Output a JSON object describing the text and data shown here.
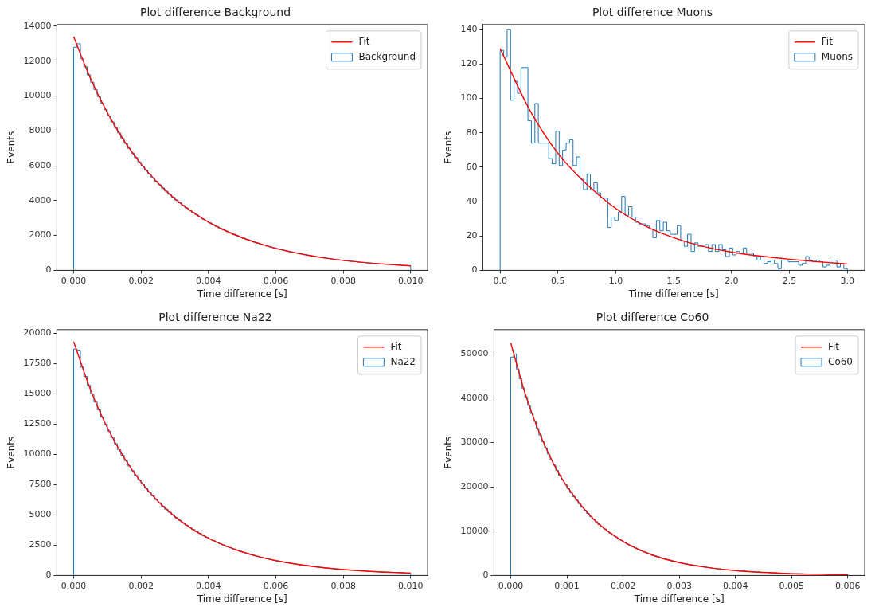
{
  "chart_data": [
    {
      "type": "histogram",
      "title": "Plot difference Background",
      "xlabel": "Time difference [s]",
      "ylabel": "Events",
      "legend": "top right",
      "bins": [
        0,
        0.0001,
        0.0002,
        0.0003,
        0.0004,
        0.0005,
        0.0006,
        0.0007,
        0.0008,
        0.0009,
        0.001,
        0.0011,
        0.0012,
        0.0013,
        0.0014,
        0.0015,
        0.0016,
        0.0017,
        0.0018,
        0.0019,
        0.002,
        0.0021,
        0.0022,
        0.0023,
        0.0024,
        0.0025,
        0.0026,
        0.0027,
        0.0028,
        0.0029,
        0.003,
        0.0031,
        0.0032,
        0.0033,
        0.0034,
        0.0035,
        0.0036,
        0.0037,
        0.0038,
        0.0039,
        0.004,
        0.0041,
        0.0042,
        0.0043,
        0.0044,
        0.0045,
        0.0046,
        0.0047,
        0.0048,
        0.0049,
        0.005,
        0.0051,
        0.0052,
        0.0053,
        0.0054,
        0.0055,
        0.0056,
        0.0057,
        0.0058,
        0.0059,
        0.006,
        0.0061,
        0.0062,
        0.0063,
        0.0064,
        0.0065,
        0.0066,
        0.0067,
        0.0068,
        0.0069,
        0.007,
        0.0071,
        0.0072,
        0.0073,
        0.0074,
        0.0075,
        0.0076,
        0.0077,
        0.0078,
        0.0079,
        0.008,
        0.0081,
        0.0082,
        0.0083,
        0.0084,
        0.0085,
        0.0086,
        0.0087,
        0.0088,
        0.0089,
        0.009,
        0.0091,
        0.0092,
        0.0093,
        0.0094,
        0.0095,
        0.0096,
        0.0097,
        0.0098,
        0.0099,
        0.01
      ],
      "series": [
        {
          "name": "Fit",
          "type": "line",
          "color": "#ff0000",
          "x": [
            0,
            0.0005,
            0.001,
            0.0015,
            0.002,
            0.0025,
            0.003,
            0.0035,
            0.004,
            0.0045,
            0.005,
            0.0055,
            0.006,
            0.0065,
            0.007,
            0.0075,
            0.008,
            0.0085,
            0.009,
            0.0095,
            0.01
          ],
          "values": [
            13400,
            11000,
            9040,
            7420,
            6100,
            5010,
            4110,
            3380,
            2770,
            2280,
            1870,
            1540,
            1260,
            1040,
            850,
            700,
            570,
            470,
            390,
            320,
            260
          ]
        },
        {
          "name": "Background",
          "color": "#1f77b4",
          "values": [
            12800,
            13000,
            12140,
            11680,
            11220,
            10790,
            10370,
            9970,
            9590,
            9220,
            8860,
            8520,
            8190,
            7880,
            7570,
            7280,
            7000,
            6730,
            6470,
            6220,
            5980,
            5750,
            5530,
            5310,
            5110,
            4910,
            4720,
            4540,
            4360,
            4200,
            4030,
            3880,
            3730,
            3580,
            3450,
            3310,
            3190,
            3060,
            2940,
            2830,
            2720,
            2620,
            2520,
            2420,
            2330,
            2240,
            2150,
            2070,
            1990,
            1910,
            1840,
            1770,
            1700,
            1630,
            1570,
            1510,
            1450,
            1390,
            1340,
            1290,
            1240,
            1190,
            1150,
            1100,
            1060,
            1020,
            980,
            940,
            900,
            870,
            840,
            800,
            770,
            740,
            710,
            690,
            660,
            630,
            610,
            590,
            560,
            540,
            520,
            500,
            480,
            460,
            450,
            430,
            410,
            400,
            380,
            370,
            350,
            340,
            330,
            310,
            300,
            290,
            280,
            270
          ]
        }
      ],
      "xlim": [
        -0.0005,
        0.0105
      ],
      "xticks": [
        {
          "value": 0,
          "label": "0.000"
        },
        {
          "value": 0.002,
          "label": "0.002"
        },
        {
          "value": 0.004,
          "label": "0.004"
        },
        {
          "value": 0.006,
          "label": "0.006"
        },
        {
          "value": 0.008,
          "label": "0.008"
        },
        {
          "value": 0.01,
          "label": "0.010"
        }
      ],
      "ylim": [
        0,
        14100
      ],
      "yticks": [
        0,
        2000,
        4000,
        6000,
        8000,
        10000,
        12000,
        14000
      ]
    },
    {
      "type": "histogram",
      "title": "Plot difference Muons",
      "xlabel": "Time difference [s]",
      "ylabel": "Events",
      "legend": "top right",
      "bins": [
        0,
        0.03,
        0.06,
        0.09,
        0.12,
        0.15,
        0.18,
        0.21,
        0.24,
        0.27,
        0.3,
        0.33,
        0.36,
        0.39,
        0.42,
        0.45,
        0.48,
        0.51,
        0.54,
        0.57,
        0.6,
        0.63,
        0.66,
        0.69,
        0.72,
        0.75,
        0.78,
        0.81,
        0.84,
        0.87,
        0.9,
        0.93,
        0.96,
        0.99,
        1.02,
        1.05,
        1.08,
        1.11,
        1.14,
        1.17,
        1.2,
        1.23,
        1.26,
        1.29,
        1.32,
        1.35,
        1.38,
        1.41,
        1.44,
        1.47,
        1.5,
        1.53,
        1.56,
        1.59,
        1.62,
        1.65,
        1.68,
        1.71,
        1.74,
        1.77,
        1.8,
        1.83,
        1.86,
        1.89,
        1.92,
        1.95,
        1.98,
        2.01,
        2.04,
        2.07,
        2.1,
        2.13,
        2.16,
        2.19,
        2.22,
        2.25,
        2.28,
        2.31,
        2.34,
        2.37,
        2.4,
        2.43,
        2.46,
        2.49,
        2.52,
        2.55,
        2.58,
        2.61,
        2.64,
        2.67,
        2.7,
        2.73,
        2.76,
        2.79,
        2.82,
        2.85,
        2.88,
        2.91,
        2.94,
        2.97,
        3
      ],
      "series": [
        {
          "name": "Fit",
          "type": "line",
          "color": "#ff0000",
          "x": [
            0,
            0.25,
            0.5,
            0.75,
            1,
            1.25,
            1.5,
            1.75,
            2,
            2.25,
            2.5,
            2.75,
            3
          ],
          "values": [
            129,
            94,
            68,
            50,
            36,
            26,
            19,
            14,
            10.6,
            8.3,
            6.5,
            5,
            3.7
          ]
        },
        {
          "name": "Muons",
          "color": "#1f77b4",
          "values": [
            128,
            124,
            140,
            99,
            110,
            103,
            118,
            118,
            87,
            74,
            97,
            74,
            74,
            74,
            65,
            62,
            81,
            61,
            70,
            74,
            76,
            61,
            66,
            53,
            47,
            56,
            47,
            51,
            45,
            42,
            42,
            25,
            31,
            29,
            34,
            43,
            32,
            37,
            31,
            28,
            27,
            27,
            26,
            24,
            19,
            29,
            23,
            28,
            23,
            21,
            21,
            26,
            17,
            14,
            21,
            11,
            16,
            14,
            14,
            15,
            11,
            15,
            11,
            15,
            12,
            8,
            13,
            9,
            11,
            10,
            13,
            10,
            10,
            8,
            6,
            8,
            4,
            5,
            6,
            4,
            1,
            6,
            6,
            5,
            5,
            5,
            3,
            4,
            8,
            6,
            5,
            6,
            5,
            2,
            3,
            6,
            6,
            2,
            4,
            1
          ]
        }
      ],
      "xlim": [
        -0.15,
        3.15
      ],
      "xticks": [
        {
          "value": 0,
          "label": "0.0"
        },
        {
          "value": 0.5,
          "label": "0.5"
        },
        {
          "value": 1,
          "label": "1.0"
        },
        {
          "value": 1.5,
          "label": "1.5"
        },
        {
          "value": 2,
          "label": "2.0"
        },
        {
          "value": 2.5,
          "label": "2.5"
        },
        {
          "value": 3,
          "label": "3.0"
        }
      ],
      "ylim": [
        0,
        143
      ],
      "yticks": [
        0,
        20,
        40,
        60,
        80,
        100,
        120,
        140
      ]
    },
    {
      "type": "histogram",
      "title": "Plot difference Na22",
      "xlabel": "Time difference [s]",
      "ylabel": "Events",
      "legend": "top right",
      "bins": [
        0,
        0.0001,
        0.0002,
        0.0003,
        0.0004,
        0.0005,
        0.0006,
        0.0007,
        0.0008,
        0.0009,
        0.001,
        0.0011,
        0.0012,
        0.0013,
        0.0014,
        0.0015,
        0.0016,
        0.0017,
        0.0018,
        0.0019,
        0.002,
        0.0021,
        0.0022,
        0.0023,
        0.0024,
        0.0025,
        0.0026,
        0.0027,
        0.0028,
        0.0029,
        0.003,
        0.0031,
        0.0032,
        0.0033,
        0.0034,
        0.0035,
        0.0036,
        0.0037,
        0.0038,
        0.0039,
        0.004,
        0.0041,
        0.0042,
        0.0043,
        0.0044,
        0.0045,
        0.0046,
        0.0047,
        0.0048,
        0.0049,
        0.005,
        0.0051,
        0.0052,
        0.0053,
        0.0054,
        0.0055,
        0.0056,
        0.0057,
        0.0058,
        0.0059,
        0.006,
        0.0061,
        0.0062,
        0.0063,
        0.0064,
        0.0065,
        0.0066,
        0.0067,
        0.0068,
        0.0069,
        0.007,
        0.0071,
        0.0072,
        0.0073,
        0.0074,
        0.0075,
        0.0076,
        0.0077,
        0.0078,
        0.0079,
        0.008,
        0.0081,
        0.0082,
        0.0083,
        0.0084,
        0.0085,
        0.0086,
        0.0087,
        0.0088,
        0.0089,
        0.009,
        0.0091,
        0.0092,
        0.0093,
        0.0094,
        0.0095,
        0.0096,
        0.0097,
        0.0098,
        0.0099,
        0.01
      ],
      "series": [
        {
          "name": "Fit",
          "type": "line",
          "color": "#ff0000",
          "x": [
            0,
            0.0005,
            0.001,
            0.0015,
            0.002,
            0.0025,
            0.003,
            0.0035,
            0.004,
            0.0045,
            0.005,
            0.0055,
            0.006,
            0.0065,
            0.007,
            0.0075,
            0.008,
            0.0085,
            0.009,
            0.0095,
            0.01
          ],
          "values": [
            19300,
            15340,
            12200,
            9700,
            7710,
            6130,
            4870,
            3870,
            3080,
            2450,
            1950,
            1550,
            1230,
            980,
            780,
            620,
            490,
            390,
            310,
            250,
            200
          ]
        },
        {
          "name": "Na22",
          "color": "#1f77b4",
          "values": [
            18700,
            18600,
            17210,
            16440,
            15700,
            15000,
            14320,
            13680,
            13070,
            12480,
            11920,
            11390,
            10880,
            10390,
            9930,
            9480,
            9050,
            8650,
            8260,
            7890,
            7540,
            7200,
            6880,
            6570,
            6270,
            5990,
            5720,
            5470,
            5220,
            4990,
            4760,
            4550,
            4350,
            4150,
            3970,
            3790,
            3620,
            3460,
            3300,
            3150,
            3010,
            2880,
            2750,
            2620,
            2510,
            2390,
            2290,
            2190,
            2090,
            1990,
            1900,
            1820,
            1740,
            1660,
            1590,
            1510,
            1450,
            1380,
            1320,
            1260,
            1200,
            1150,
            1100,
            1050,
            1000,
            960,
            910,
            870,
            830,
            800,
            760,
            730,
            690,
            660,
            630,
            600,
            580,
            550,
            530,
            500,
            480,
            460,
            440,
            420,
            400,
            380,
            370,
            350,
            330,
            320,
            300,
            290,
            280,
            270,
            250,
            240,
            230,
            220,
            210,
            200
          ]
        }
      ],
      "xlim": [
        -0.0005,
        0.0105
      ],
      "xticks": [
        {
          "value": 0,
          "label": "0.000"
        },
        {
          "value": 0.002,
          "label": "0.002"
        },
        {
          "value": 0.004,
          "label": "0.004"
        },
        {
          "value": 0.006,
          "label": "0.006"
        },
        {
          "value": 0.008,
          "label": "0.008"
        },
        {
          "value": 0.01,
          "label": "0.010"
        }
      ],
      "ylim": [
        0,
        20300
      ],
      "yticks": [
        0,
        2500,
        5000,
        7500,
        10000,
        12500,
        15000,
        17500,
        20000
      ]
    },
    {
      "type": "histogram",
      "title": "Plot difference Co60",
      "xlabel": "Time difference [s]",
      "ylabel": "Events",
      "legend": "top right",
      "bins": [
        0,
        5e-05,
        0.0001,
        0.00015,
        0.0002,
        0.00025,
        0.0003,
        0.00035,
        0.0004,
        0.00045,
        0.0005,
        0.00055,
        0.0006,
        0.00065,
        0.0007,
        0.00075,
        0.0008,
        0.00085,
        0.0009,
        0.00095,
        0.001,
        0.00105,
        0.0011,
        0.00115,
        0.0012,
        0.00125,
        0.0013,
        0.00135,
        0.0014,
        0.00145,
        0.0015,
        0.00155,
        0.0016,
        0.00165,
        0.0017,
        0.00175,
        0.0018,
        0.00185,
        0.0019,
        0.00195,
        0.002,
        0.00205,
        0.0021,
        0.00215,
        0.0022,
        0.00225,
        0.0023,
        0.00235,
        0.0024,
        0.00245,
        0.0025,
        0.00255,
        0.0026,
        0.00265,
        0.0027,
        0.00275,
        0.0028,
        0.00285,
        0.0029,
        0.00295,
        0.003,
        0.00305,
        0.0031,
        0.00315,
        0.0032,
        0.00325,
        0.0033,
        0.00335,
        0.0034,
        0.00345,
        0.0035,
        0.00355,
        0.0036,
        0.00365,
        0.0037,
        0.00375,
        0.0038,
        0.00385,
        0.0039,
        0.00395,
        0.004,
        0.00405,
        0.0041,
        0.00415,
        0.0042,
        0.00425,
        0.0043,
        0.00435,
        0.0044,
        0.00445,
        0.0045,
        0.00455,
        0.0046,
        0.00465,
        0.0047,
        0.00475,
        0.0048,
        0.00485,
        0.0049,
        0.00495,
        0.005,
        0.00505,
        0.0051,
        0.00515,
        0.0052,
        0.00525,
        0.0053,
        0.00535,
        0.0054,
        0.00545,
        0.0055,
        0.00555,
        0.0056,
        0.00565,
        0.0057,
        0.00575,
        0.0058,
        0.00585,
        0.0059,
        0.00595,
        0.006
      ],
      "series": [
        {
          "name": "Fit",
          "type": "line",
          "color": "#ff0000",
          "x": [
            0,
            0.00025,
            0.0005,
            0.00075,
            0.001,
            0.0015,
            0.002,
            0.0025,
            0.003,
            0.0035,
            0.004,
            0.0045,
            0.005,
            0.0055,
            0.006
          ],
          "values": [
            52500,
            41300,
            32500,
            25500,
            20100,
            12400,
            7700,
            4700,
            2900,
            1800,
            1100,
            700,
            400,
            300,
            200
          ]
        },
        {
          "name": "Co60",
          "color": "#1f77b4",
          "values": [
            49300,
            50000,
            46600,
            44400,
            42300,
            40300,
            38400,
            36600,
            34900,
            33200,
            31700,
            30200,
            28800,
            27400,
            26100,
            24900,
            23700,
            22600,
            21600,
            20600,
            19600,
            18700,
            17800,
            17000,
            16200,
            15400,
            14700,
            14000,
            13300,
            12700,
            12100,
            11500,
            11000,
            10500,
            10000,
            9500,
            9100,
            8700,
            8200,
            7900,
            7500,
            7100,
            6800,
            6500,
            6200,
            5900,
            5600,
            5400,
            5100,
            4900,
            4600,
            4400,
            4200,
            4000,
            3800,
            3600,
            3500,
            3300,
            3200,
            3000,
            2900,
            2700,
            2600,
            2500,
            2400,
            2300,
            2200,
            2100,
            2000,
            1900,
            1800,
            1700,
            1600,
            1500,
            1500,
            1400,
            1300,
            1300,
            1200,
            1200,
            1100,
            1000,
            1000,
            1000,
            900,
            900,
            800,
            800,
            800,
            700,
            700,
            700,
            600,
            600,
            600,
            500,
            500,
            500,
            500,
            400,
            400,
            400,
            400,
            400,
            300,
            300,
            300,
            300,
            300,
            300,
            300,
            300,
            200,
            200,
            200,
            200,
            200,
            200,
            200,
            200
          ]
        }
      ],
      "xlim": [
        -0.0003,
        0.0063
      ],
      "xticks": [
        {
          "value": 0,
          "label": "0.000"
        },
        {
          "value": 0.001,
          "label": "0.001"
        },
        {
          "value": 0.002,
          "label": "0.002"
        },
        {
          "value": 0.003,
          "label": "0.003"
        },
        {
          "value": 0.004,
          "label": "0.004"
        },
        {
          "value": 0.005,
          "label": "0.005"
        },
        {
          "value": 0.006,
          "label": "0.006"
        }
      ],
      "ylim": [
        0,
        55500
      ],
      "yticks": [
        0,
        10000,
        20000,
        30000,
        40000,
        50000
      ]
    }
  ]
}
